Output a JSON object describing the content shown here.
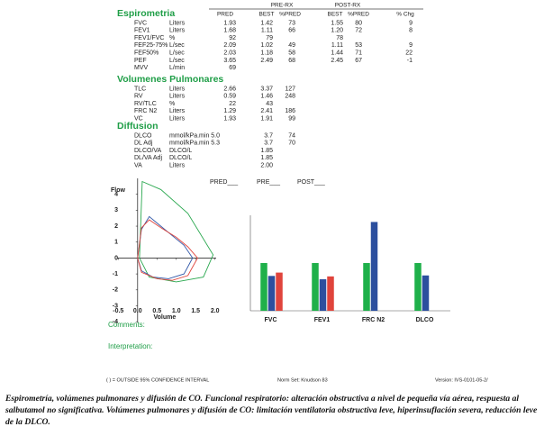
{
  "report": {
    "header": {
      "pre_rx": "PRE-RX",
      "post_rx": "POST-RX",
      "columns": [
        "PRED",
        "BEST",
        "%PRED",
        "BEST",
        "%PRED",
        "% Chg"
      ]
    },
    "sections": [
      {
        "title": "Espirometria",
        "rows": [
          [
            "FVC",
            "Liters",
            "1.93",
            "1.42",
            "73",
            "1.55",
            "80",
            "9"
          ],
          [
            "FEV1",
            "Liters",
            "1.68",
            "1.11",
            "66",
            "1.20",
            "72",
            "8"
          ],
          [
            "FEV1/FVC",
            "%",
            "92",
            "79",
            null,
            "78",
            null,
            null
          ],
          [
            "FEF25-75%",
            "L/sec",
            "2.09",
            "1.02",
            "49",
            "1.11",
            "53",
            "9"
          ],
          [
            "FEF50%",
            "L/sec",
            "2.03",
            "1.18",
            "58",
            "1.44",
            "71",
            "22"
          ],
          [
            "PEF",
            "L/sec",
            "3.65",
            "2.49",
            "68",
            "2.45",
            "67",
            "-1"
          ],
          [
            "MVV",
            "L/min",
            "69",
            null,
            null,
            null,
            null,
            null
          ]
        ]
      },
      {
        "title": "Volumenes Pulmonares",
        "rows": [
          [
            "TLC",
            "Liters",
            "2.66",
            "3.37",
            "127",
            null,
            null,
            null
          ],
          [
            "RV",
            "Liters",
            "0.59",
            "1.46",
            "248",
            null,
            null,
            null
          ],
          [
            "RV/TLC",
            "%",
            "22",
            "43",
            null,
            null,
            null,
            null
          ],
          [
            "FRC N2",
            "Liters",
            "1.29",
            "2.41",
            "186",
            null,
            null,
            null
          ],
          [
            "VC",
            "Liters",
            "1.93",
            "1.91",
            "99",
            null,
            null,
            null
          ]
        ]
      },
      {
        "title": "Diffusion",
        "rows": [
          [
            "DLCO",
            "mmol/kPa.min",
            "5.0",
            "3.7",
            "74",
            null,
            null,
            null
          ],
          [
            "DL Adj",
            "mmol/kPa.min",
            "5.3",
            "3.7",
            "70",
            null,
            null,
            null
          ],
          [
            "DLCO/VA",
            "DLCO/L",
            null,
            "1.85",
            null,
            null,
            null,
            null
          ],
          [
            "DL/VA Adj",
            "DLCO/L",
            null,
            "1.85",
            null,
            null,
            null,
            null
          ],
          [
            "VA",
            "Liters",
            null,
            "2.00",
            null,
            null,
            null,
            null
          ]
        ]
      }
    ],
    "comments": "Comments:",
    "interpretation": "Interpretation:",
    "footer": {
      "confidence": "( ) = OUTSIDE 95% CONFIDENCE INTERVAL",
      "norm_set": "Norm Set: Knudson 83",
      "version": "Version: IVS-0101-05-2/"
    },
    "caption": "Espirometría, volúmenes pulmonares y difusión de CO. Funcional respiratorio: alteración obstructiva a nivel de pequeña vía aérea, respuesta al salbutamol no significativa. Volúmenes pulmonares y difusión de CO: limitación ventilatoria obstructiva leve, hiperinsuflación severa, reducción leve de la DLCO."
  },
  "chart_data": [
    {
      "type": "line",
      "y_label": "Flow",
      "x_label": "Volume",
      "xlim": [
        -0.6,
        2.1
      ],
      "ylim": [
        -4.5,
        5
      ],
      "xticks": [
        -0.5,
        {
          "value": 0,
          "label": "0.0"
        },
        0.5,
        {
          "value": 1,
          "label": "1.0"
        },
        1.5,
        {
          "value": 2,
          "label": "2.0"
        }
      ],
      "yticks": [
        4,
        3,
        2,
        1,
        0,
        -1,
        -2,
        -3,
        -4
      ],
      "series": [
        {
          "color": "#2aa84f",
          "x": [
            0.05,
            0.12,
            0.6,
            1.3,
            1.95,
            1.7,
            1.0,
            0.3,
            0.05
          ],
          "values": [
            0,
            4.8,
            4.3,
            2.8,
            0.2,
            -1.2,
            -1.5,
            -1.2,
            0
          ]
        },
        {
          "color": "#3057a8",
          "x": [
            0.0,
            0.1,
            0.3,
            0.6,
            0.9,
            1.2,
            1.42,
            1.2,
            0.8,
            0.4,
            0.1,
            0.0
          ],
          "values": [
            0,
            1.8,
            2.6,
            2.0,
            1.4,
            0.8,
            0,
            -1.0,
            -1.3,
            -1.2,
            -0.8,
            0
          ]
        },
        {
          "color": "#e0463e",
          "x": [
            0.0,
            0.1,
            0.3,
            0.6,
            1.0,
            1.3,
            1.55,
            1.3,
            0.9,
            0.5,
            0.1,
            0.0
          ],
          "values": [
            0,
            1.9,
            2.4,
            1.9,
            1.3,
            0.7,
            0,
            -1.1,
            -1.4,
            -1.3,
            -0.9,
            0
          ]
        }
      ]
    },
    {
      "type": "bar",
      "categories": [
        "FVC",
        "FEV1",
        "FRC N2",
        "DLCO"
      ],
      "ylim": [
        0,
        200
      ],
      "series": [
        {
          "name": "PRED___",
          "color": "#1fb04a",
          "values": [
            100,
            100,
            100,
            100
          ]
        },
        {
          "name": "PRE___",
          "color": "#2c4f9e",
          "values": [
            73,
            66,
            186,
            74
          ]
        },
        {
          "name": "POST___",
          "color": "#e0443c",
          "values": [
            80,
            72,
            null,
            null
          ]
        }
      ]
    }
  ]
}
